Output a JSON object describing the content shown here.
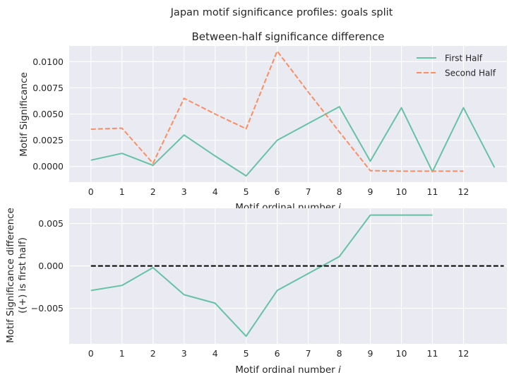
{
  "chart_data": [
    {
      "type": "line",
      "suptitle": "Japan motif significance profiles: goals split",
      "title": "Between-half significance difference",
      "xlabel": "Motif ordinal number ",
      "xlabel_italic": "i",
      "ylabel": "Motif Significance",
      "xticks": [
        0,
        1,
        2,
        3,
        4,
        5,
        6,
        7,
        8,
        9,
        10,
        11,
        12
      ],
      "xlim": [
        -0.7,
        13.4
      ],
      "ylim": [
        -0.0015,
        0.0115
      ],
      "yticks": [
        0.0,
        0.0025,
        0.005,
        0.0075,
        0.01
      ],
      "ytick_labels": [
        "0.0000",
        "0.0025",
        "0.0050",
        "0.0075",
        "0.0100"
      ],
      "grid": true,
      "legend": "top-right",
      "series": [
        {
          "name": "First Half",
          "style": "solid",
          "color": "#66c2a5",
          "x": [
            0,
            1,
            2,
            3,
            4,
            5,
            6,
            7,
            8,
            9,
            10,
            11,
            12,
            13
          ],
          "values": [
            0.0006,
            0.00125,
            0.0001,
            0.003,
            0.001,
            -0.0009,
            0.0025,
            0.0041,
            0.0057,
            0.0005,
            0.0056,
            -0.0005,
            0.0056,
            -0.0001
          ]
        },
        {
          "name": "Second Half",
          "style": "dashed",
          "color": "#fc8d62",
          "x": [
            0,
            1,
            2,
            3,
            4,
            5,
            6,
            7,
            8,
            9,
            10,
            11,
            12
          ],
          "values": [
            0.00355,
            0.00365,
            0.0003,
            0.0065,
            0.005,
            0.0036,
            0.011,
            0.0071,
            0.0033,
            -0.0004,
            -0.00045,
            -0.00045,
            -0.00045
          ]
        }
      ]
    },
    {
      "type": "line",
      "xlabel": "Motif ordinal number ",
      "xlabel_italic": "i",
      "ylabel": "Motif Significance difference",
      "ylabel2": "((+) is first half)",
      "xticks": [
        0,
        1,
        2,
        3,
        4,
        5,
        6,
        7,
        8,
        9,
        10,
        11,
        12
      ],
      "xlim": [
        -0.7,
        13.4
      ],
      "ylim": [
        -0.0092,
        0.0068
      ],
      "yticks": [
        -0.005,
        0.0,
        0.005
      ],
      "ytick_labels": [
        "−0.005",
        "0.000",
        "0.005"
      ],
      "grid": true,
      "series": [
        {
          "style": "solid",
          "color": "#66c2a5",
          "x": [
            0,
            1,
            2,
            3,
            4,
            5,
            6,
            7,
            8,
            9,
            10,
            11
          ],
          "values": [
            -0.0029,
            -0.0023,
            -0.0002,
            -0.0034,
            -0.0044,
            -0.0083,
            -0.0029,
            -0.0009,
            0.0011,
            0.006,
            0.006,
            0.006
          ]
        },
        {
          "style": "dashed",
          "color": "#000000",
          "x": [
            0,
            13.3
          ],
          "values": [
            0,
            0
          ]
        }
      ]
    }
  ]
}
